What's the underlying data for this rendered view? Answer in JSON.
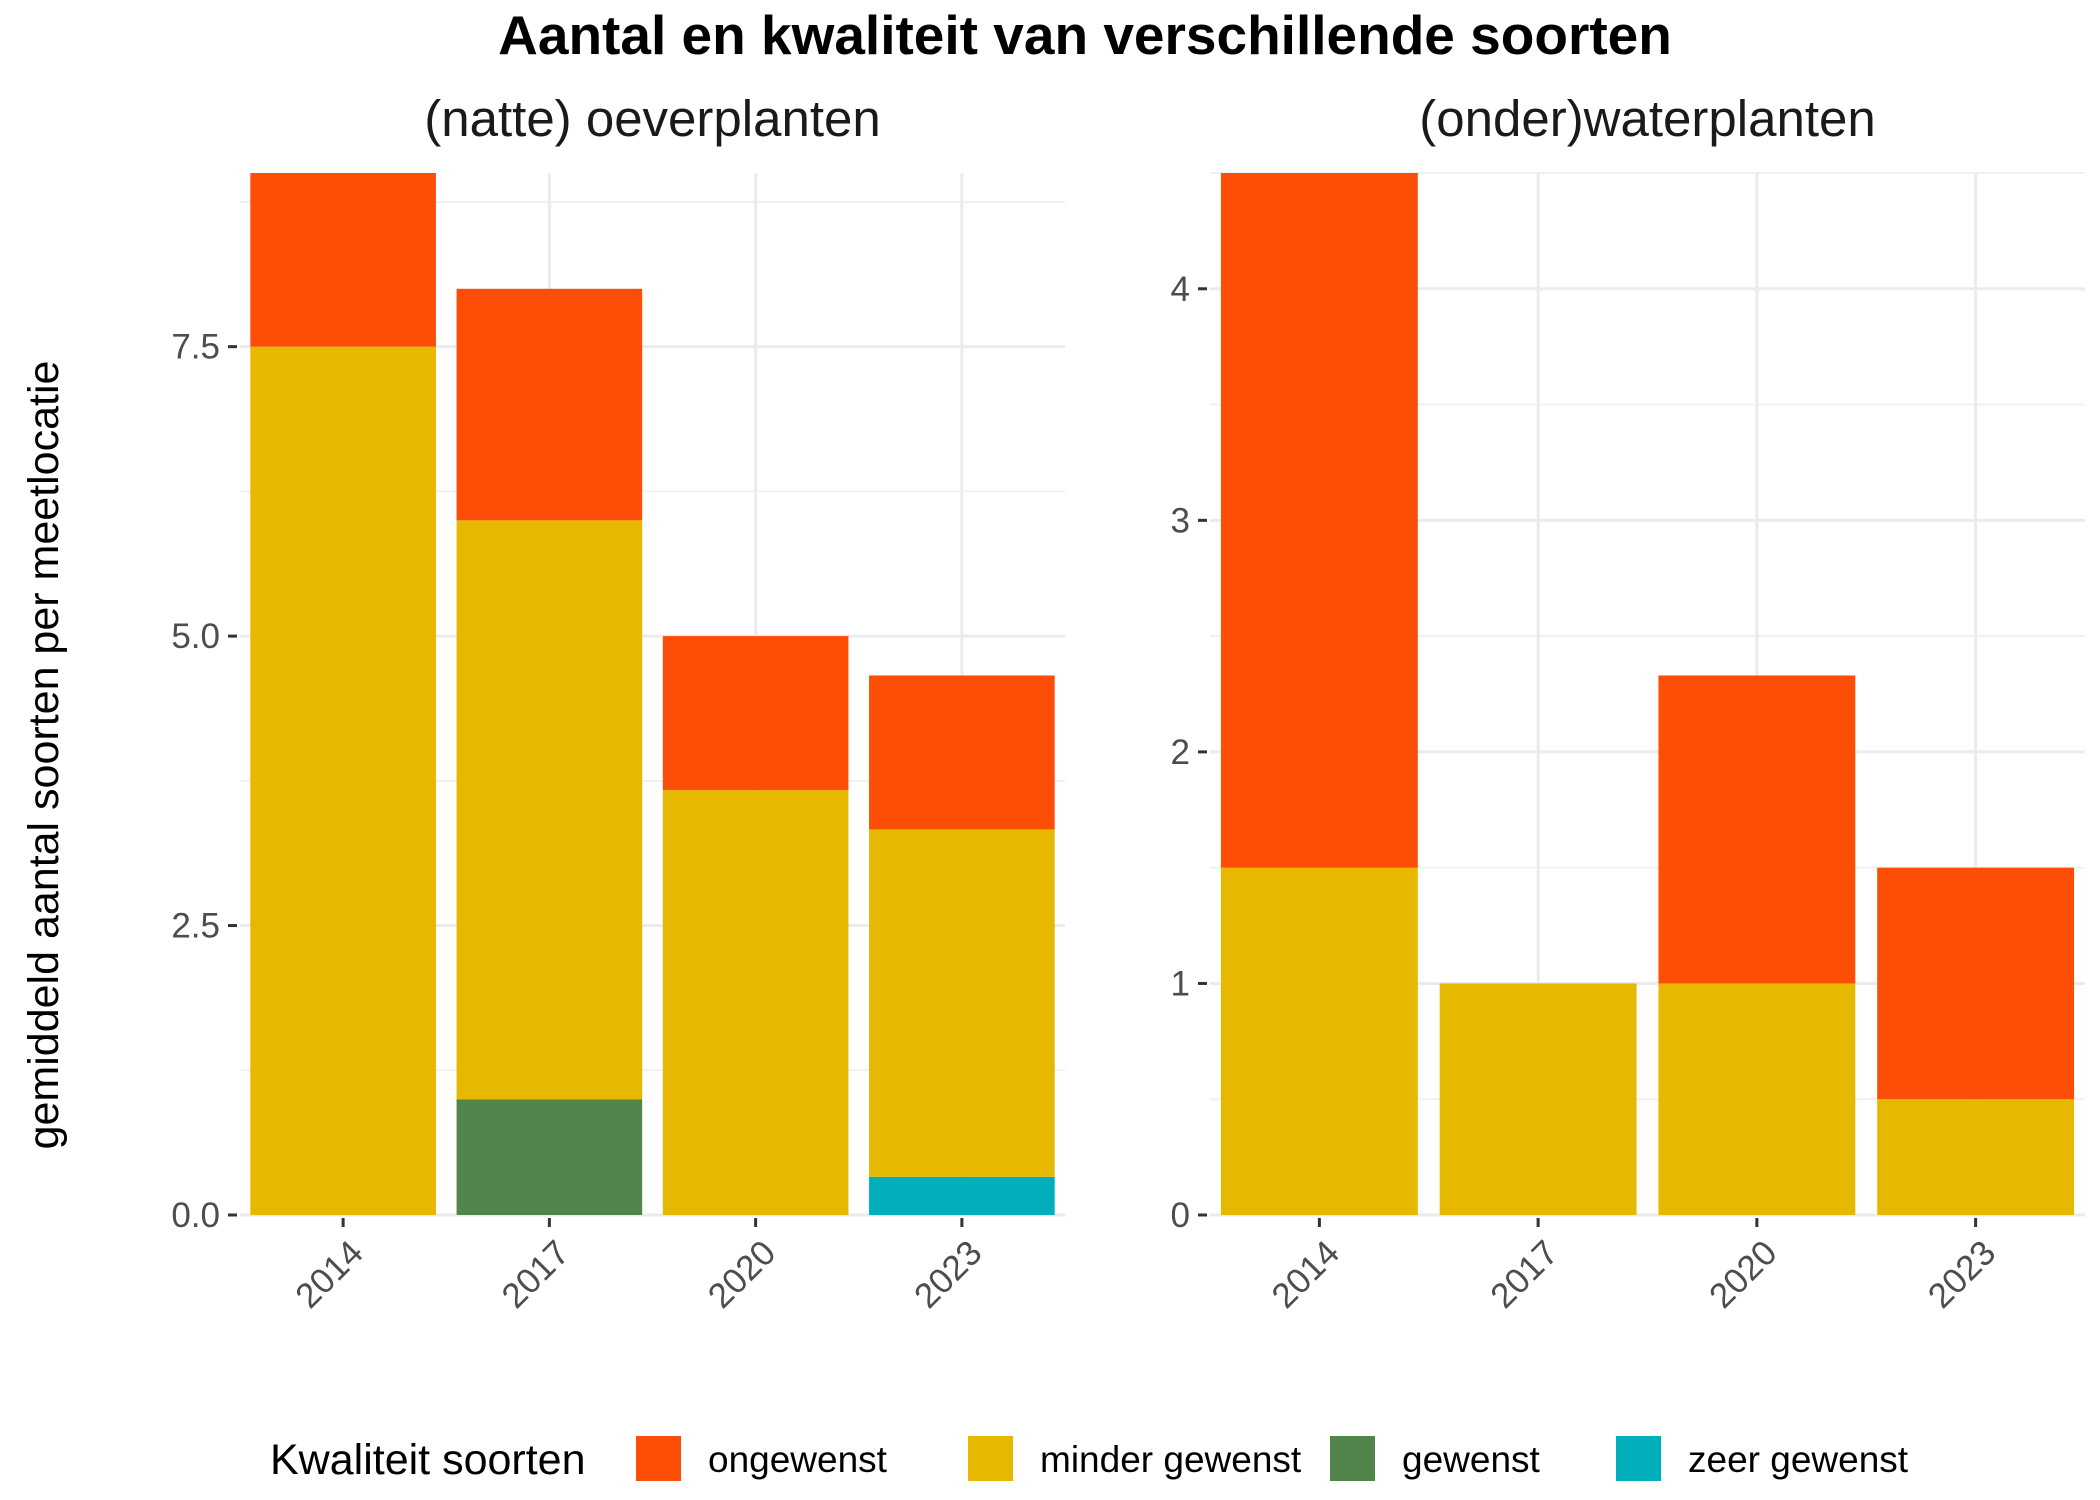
{
  "chart_data": {
    "type": "bar",
    "stacked": true,
    "title": "Aantal en kwaliteit van verschillende soorten",
    "ylabel": "gemiddeld aantal soorten per meetlocatie",
    "categories": [
      "2014",
      "2017",
      "2020",
      "2023"
    ],
    "legend": {
      "title": "Kwaliteit soorten",
      "position": "bottom",
      "items": [
        {
          "key": "ongewenst",
          "label": "ongewenst",
          "color": "#fc4e07"
        },
        {
          "key": "minder_gewenst",
          "label": "minder gewenst",
          "color": "#e7b800"
        },
        {
          "key": "gewenst",
          "label": "gewenst",
          "color": "#52854c"
        },
        {
          "key": "zeer_gewenst",
          "label": "zeer gewenst",
          "color": "#00afbb"
        }
      ]
    },
    "panels": [
      {
        "title": "(natte) oeverplanten",
        "ylim": [
          0,
          9
        ],
        "yticks": [
          0,
          2.5,
          5,
          7.5
        ],
        "ytick_labels": [
          "0.0",
          "2.5",
          "5.0",
          "7.5"
        ],
        "series": [
          {
            "key": "zeer_gewenst",
            "values": [
              0,
              0,
              0,
              0.33
            ]
          },
          {
            "key": "gewenst",
            "values": [
              0,
              1,
              0,
              0
            ]
          },
          {
            "key": "minder_gewenst",
            "values": [
              7.5,
              5,
              3.67,
              3
            ]
          },
          {
            "key": "ongewenst",
            "values": [
              1.5,
              2,
              1.33,
              1.33
            ]
          }
        ]
      },
      {
        "title": "(onder)waterplanten",
        "ylim": [
          0,
          4.5
        ],
        "yticks": [
          0,
          1,
          2,
          3,
          4
        ],
        "ytick_labels": [
          "0",
          "1",
          "2",
          "3",
          "4"
        ],
        "series": [
          {
            "key": "zeer_gewenst",
            "values": [
              0,
              0,
              0,
              0
            ]
          },
          {
            "key": "gewenst",
            "values": [
              0,
              0,
              0,
              0
            ]
          },
          {
            "key": "minder_gewenst",
            "values": [
              1.5,
              1,
              1,
              0.5
            ]
          },
          {
            "key": "ongewenst",
            "values": [
              3,
              0,
              1.33,
              1
            ]
          }
        ]
      }
    ],
    "grid": true
  }
}
